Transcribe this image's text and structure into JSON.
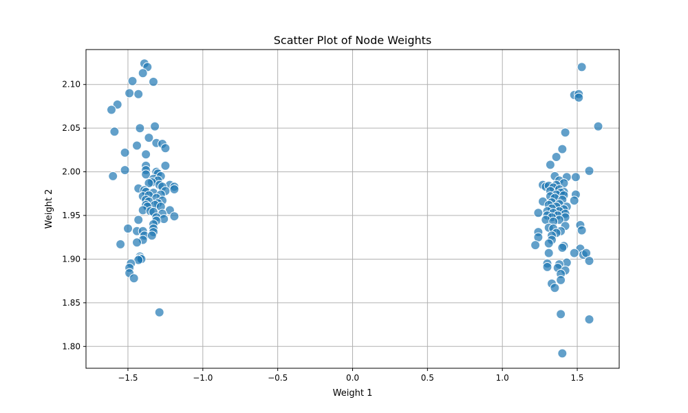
{
  "chart_data": {
    "type": "scatter",
    "title": "Scatter Plot of Node Weights",
    "xlabel": "Weight 1",
    "ylabel": "Weight 2",
    "xlim": [
      -1.78,
      1.78
    ],
    "ylim": [
      1.775,
      2.14
    ],
    "xticks": [
      -1.5,
      -1.0,
      -0.5,
      0.0,
      0.5,
      1.0,
      1.5
    ],
    "xtick_labels": [
      "−1.5",
      "−1.0",
      "−0.5",
      "0.0",
      "0.5",
      "1.0",
      "1.5"
    ],
    "yticks": [
      1.8,
      1.85,
      1.9,
      1.95,
      2.0,
      2.05,
      2.1
    ],
    "ytick_labels": [
      "1.80",
      "1.85",
      "1.90",
      "1.95",
      "2.00",
      "2.05",
      "2.10"
    ],
    "grid": true,
    "legend": "none",
    "marker_color": "#1f77b4",
    "marker_edge_color": "#ffffff",
    "marker_alpha": 0.7,
    "points": [
      [
        -1.39,
        2.124
      ],
      [
        -1.37,
        2.12
      ],
      [
        -1.4,
        2.113
      ],
      [
        -1.33,
        2.103
      ],
      [
        -1.47,
        2.104
      ],
      [
        -1.49,
        2.09
      ],
      [
        -1.43,
        2.089
      ],
      [
        -1.57,
        2.077
      ],
      [
        -1.61,
        2.071
      ],
      [
        -1.59,
        2.046
      ],
      [
        -1.42,
        2.05
      ],
      [
        -1.32,
        2.052
      ],
      [
        -1.36,
        2.039
      ],
      [
        -1.31,
        2.033
      ],
      [
        -1.27,
        2.032
      ],
      [
        -1.25,
        2.027
      ],
      [
        -1.44,
        2.03
      ],
      [
        -1.52,
        2.022
      ],
      [
        -1.38,
        2.02
      ],
      [
        -1.25,
        2.007
      ],
      [
        -1.38,
        2.007
      ],
      [
        -1.52,
        2.002
      ],
      [
        -1.38,
        2.002
      ],
      [
        -1.31,
        2.0
      ],
      [
        -1.3,
        1.998
      ],
      [
        -1.38,
        1.997
      ],
      [
        -1.6,
        1.995
      ],
      [
        -1.28,
        1.995
      ],
      [
        -1.33,
        1.992
      ],
      [
        -1.3,
        1.99
      ],
      [
        -1.34,
        1.988
      ],
      [
        -1.36,
        1.987
      ],
      [
        -1.22,
        1.985
      ],
      [
        -1.19,
        1.983
      ],
      [
        -1.29,
        1.985
      ],
      [
        -1.27,
        1.983
      ],
      [
        -1.43,
        1.981
      ],
      [
        -1.39,
        1.979
      ],
      [
        -1.38,
        1.977
      ],
      [
        -1.19,
        1.98
      ],
      [
        -1.25,
        1.978
      ],
      [
        -1.33,
        1.976
      ],
      [
        -1.28,
        1.974
      ],
      [
        -1.4,
        1.972
      ],
      [
        -1.36,
        1.973
      ],
      [
        -1.31,
        1.97
      ],
      [
        -1.38,
        1.968
      ],
      [
        -1.27,
        1.967
      ],
      [
        -1.36,
        1.966
      ],
      [
        -1.3,
        1.964
      ],
      [
        -1.38,
        1.962
      ],
      [
        -1.32,
        1.962
      ],
      [
        -1.37,
        1.96
      ],
      [
        -1.28,
        1.96
      ],
      [
        -1.4,
        1.956
      ],
      [
        -1.35,
        1.955
      ],
      [
        -1.22,
        1.956
      ],
      [
        -1.33,
        1.954
      ],
      [
        -1.27,
        1.952
      ],
      [
        -1.19,
        1.949
      ],
      [
        -1.31,
        1.948
      ],
      [
        -1.26,
        1.946
      ],
      [
        -1.43,
        1.945
      ],
      [
        -1.31,
        1.944
      ],
      [
        -1.33,
        1.94
      ],
      [
        -1.33,
        1.935
      ],
      [
        -1.5,
        1.935
      ],
      [
        -1.44,
        1.932
      ],
      [
        -1.4,
        1.932
      ],
      [
        -1.33,
        1.931
      ],
      [
        -1.39,
        1.927
      ],
      [
        -1.34,
        1.927
      ],
      [
        -1.4,
        1.922
      ],
      [
        -1.44,
        1.919
      ],
      [
        -1.55,
        1.917
      ],
      [
        -1.42,
        1.903
      ],
      [
        -1.42,
        1.901
      ],
      [
        -1.41,
        1.9
      ],
      [
        -1.43,
        1.899
      ],
      [
        -1.48,
        1.895
      ],
      [
        -1.49,
        1.89
      ],
      [
        -1.49,
        1.884
      ],
      [
        -1.46,
        1.878
      ],
      [
        -1.29,
        1.839
      ],
      [
        1.53,
        2.12
      ],
      [
        1.48,
        2.088
      ],
      [
        1.51,
        2.089
      ],
      [
        1.51,
        2.085
      ],
      [
        1.64,
        2.052
      ],
      [
        1.42,
        2.045
      ],
      [
        1.4,
        2.026
      ],
      [
        1.36,
        2.017
      ],
      [
        1.32,
        2.008
      ],
      [
        1.58,
        2.001
      ],
      [
        1.35,
        1.995
      ],
      [
        1.43,
        1.994
      ],
      [
        1.49,
        1.994
      ],
      [
        1.38,
        1.99
      ],
      [
        1.41,
        1.987
      ],
      [
        1.36,
        1.985
      ],
      [
        1.27,
        1.985
      ],
      [
        1.29,
        1.983
      ],
      [
        1.31,
        1.984
      ],
      [
        1.34,
        1.982
      ],
      [
        1.38,
        1.98
      ],
      [
        1.32,
        1.978
      ],
      [
        1.41,
        1.977
      ],
      [
        1.39,
        1.976
      ],
      [
        1.36,
        1.974
      ],
      [
        1.41,
        1.973
      ],
      [
        1.49,
        1.974
      ],
      [
        1.32,
        1.972
      ],
      [
        1.35,
        1.97
      ],
      [
        1.4,
        1.968
      ],
      [
        1.48,
        1.967
      ],
      [
        1.27,
        1.966
      ],
      [
        1.33,
        1.965
      ],
      [
        1.38,
        1.963
      ],
      [
        1.31,
        1.962
      ],
      [
        1.36,
        1.96
      ],
      [
        1.43,
        1.96
      ],
      [
        1.33,
        1.958
      ],
      [
        1.41,
        1.957
      ],
      [
        1.38,
        1.955
      ],
      [
        1.3,
        1.955
      ],
      [
        1.34,
        1.953
      ],
      [
        1.24,
        1.953
      ],
      [
        1.42,
        1.952
      ],
      [
        1.37,
        1.95
      ],
      [
        1.3,
        1.95
      ],
      [
        1.33,
        1.948
      ],
      [
        1.42,
        1.948
      ],
      [
        1.38,
        1.945
      ],
      [
        1.29,
        1.945
      ],
      [
        1.34,
        1.943
      ],
      [
        1.52,
        1.939
      ],
      [
        1.42,
        1.938
      ],
      [
        1.31,
        1.936
      ],
      [
        1.34,
        1.935
      ],
      [
        1.53,
        1.933
      ],
      [
        1.39,
        1.932
      ],
      [
        1.24,
        1.931
      ],
      [
        1.36,
        1.93
      ],
      [
        1.33,
        1.927
      ],
      [
        1.24,
        1.925
      ],
      [
        1.33,
        1.922
      ],
      [
        1.31,
        1.918
      ],
      [
        1.22,
        1.916
      ],
      [
        1.41,
        1.915
      ],
      [
        1.4,
        1.913
      ],
      [
        1.52,
        1.912
      ],
      [
        1.31,
        1.907
      ],
      [
        1.48,
        1.907
      ],
      [
        1.54,
        1.905
      ],
      [
        1.56,
        1.907
      ],
      [
        1.58,
        1.898
      ],
      [
        1.43,
        1.896
      ],
      [
        1.3,
        1.895
      ],
      [
        1.38,
        1.894
      ],
      [
        1.3,
        1.891
      ],
      [
        1.37,
        1.89
      ],
      [
        1.42,
        1.887
      ],
      [
        1.39,
        1.883
      ],
      [
        1.39,
        1.876
      ],
      [
        1.33,
        1.872
      ],
      [
        1.35,
        1.867
      ],
      [
        1.39,
        1.837
      ],
      [
        1.58,
        1.831
      ],
      [
        1.4,
        1.792
      ]
    ]
  }
}
